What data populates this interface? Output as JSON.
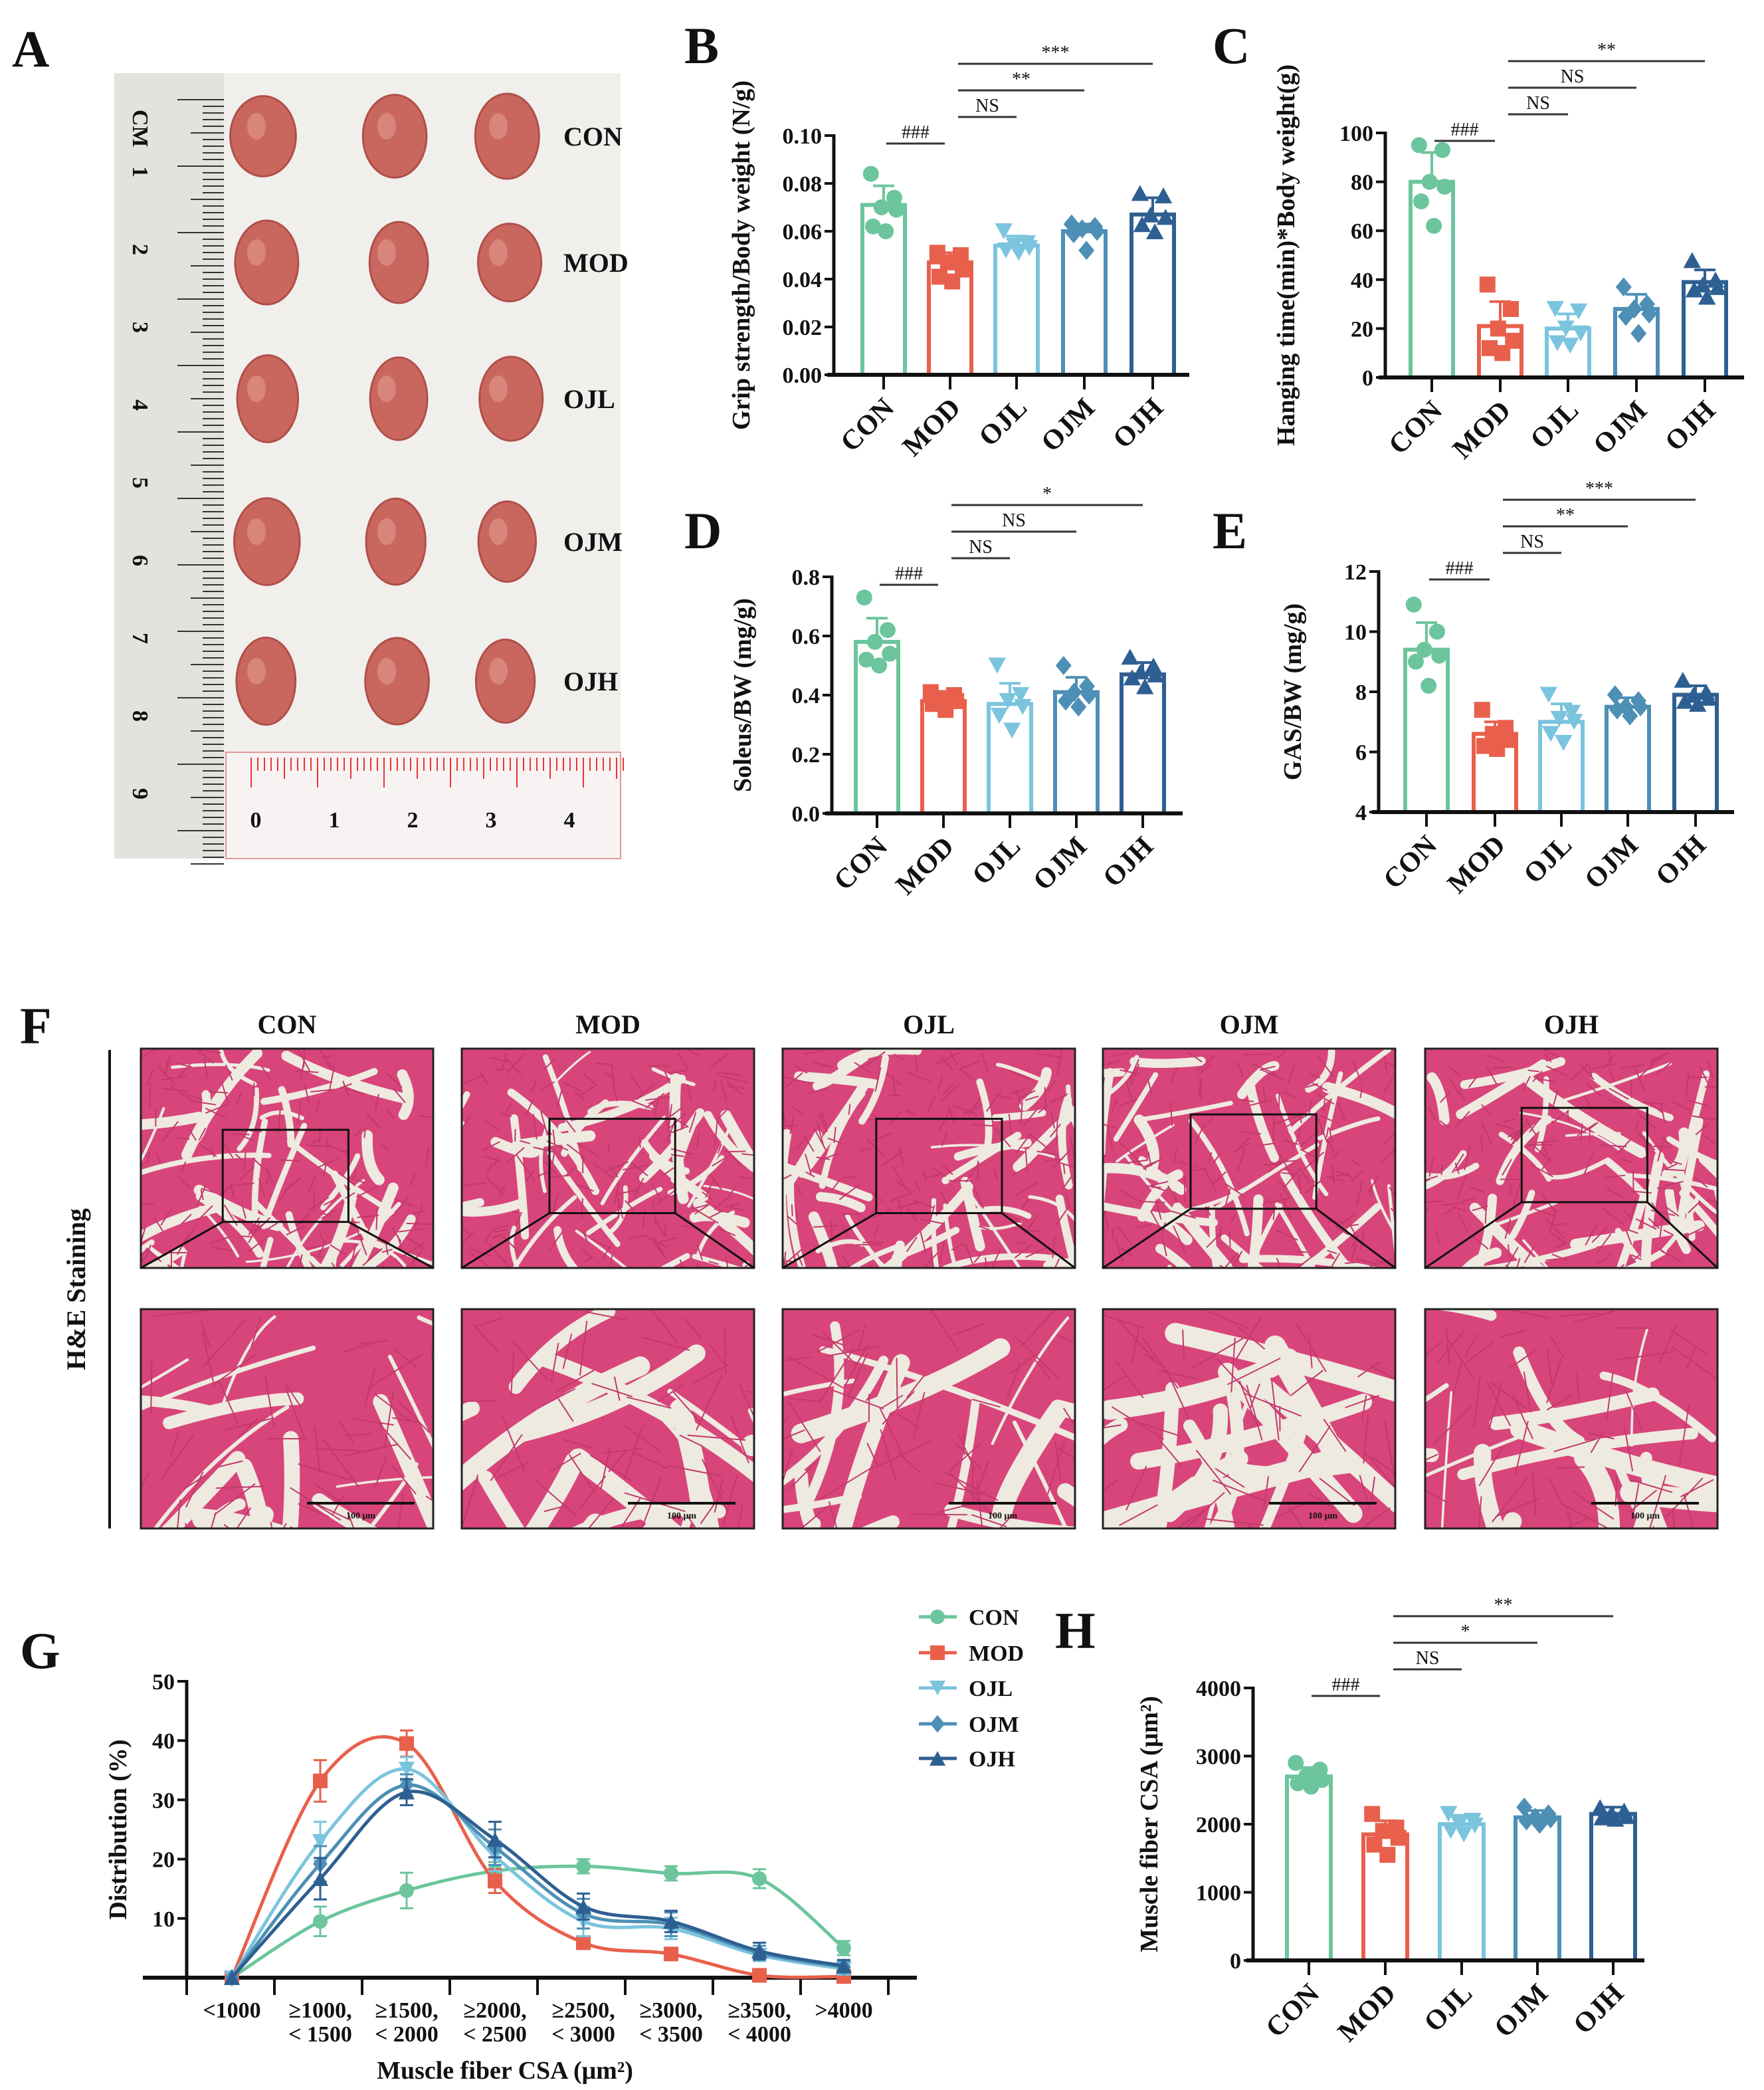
{
  "panel_letters": [
    "A",
    "B",
    "C",
    "D",
    "E",
    "F",
    "G",
    "H"
  ],
  "colors": {
    "CON": "#6cc59c",
    "MOD": "#e8604c",
    "OJL": "#7bc4de",
    "OJM": "#4d8fb5",
    "OJH": "#2e5f92"
  },
  "markers": {
    "CON": "circle",
    "MOD": "square",
    "OJL": "triangle-down",
    "OJM": "diamond",
    "OJH": "triangle-up"
  },
  "panel_a": {
    "groups": [
      "CON",
      "MOD",
      "OJL",
      "OJM",
      "OJH"
    ],
    "ruler_unit": "CM",
    "ruler_numbers": [
      "1",
      "2",
      "3",
      "4",
      "5",
      "6",
      "7",
      "8",
      "9"
    ],
    "bottom_ruler_numbers": [
      "0",
      "1",
      "2",
      "3",
      "4"
    ]
  },
  "panel_f": {
    "groups": [
      "CON",
      "MOD",
      "OJL",
      "OJM",
      "OJH"
    ],
    "row_label": "H&E Staining",
    "scale_bar": "100 μm"
  },
  "chart_data": [
    {
      "panel": "B",
      "type": "bar",
      "categories": [
        "CON",
        "MOD",
        "OJL",
        "OJM",
        "OJH"
      ],
      "ylabel": "Grip strength/Body weight (N/g)",
      "ylim": [
        0,
        0.1
      ],
      "yticks": [
        "0.00",
        "0.02",
        "0.04",
        "0.06",
        "0.08",
        "0.10"
      ],
      "means": [
        0.071,
        0.047,
        0.054,
        0.06,
        0.067
      ],
      "sd": [
        0.008,
        0.004,
        0.004,
        0.003,
        0.007
      ],
      "points": [
        [
          0.084,
          0.074,
          0.07,
          0.069,
          0.062,
          0.06
        ],
        [
          0.051,
          0.05,
          0.047,
          0.044,
          0.041,
          0.039
        ],
        [
          0.06,
          0.055,
          0.054,
          0.053,
          0.052,
          0.051
        ],
        [
          0.063,
          0.062,
          0.061,
          0.06,
          0.059,
          0.052
        ],
        [
          0.076,
          0.075,
          0.067,
          0.066,
          0.063,
          0.06
        ]
      ],
      "significance": [
        {
          "from": 0,
          "to": 1,
          "label": "###"
        },
        {
          "from": 1,
          "to": 2,
          "label": "NS"
        },
        {
          "from": 1,
          "to": 3,
          "label": "**"
        },
        {
          "from": 1,
          "to": 4,
          "label": "***"
        }
      ]
    },
    {
      "panel": "C",
      "type": "bar",
      "categories": [
        "CON",
        "MOD",
        "OJL",
        "OJM",
        "OJH"
      ],
      "ylabel": "Hanging time(min)*Body weight(g)",
      "ylim": [
        0,
        100
      ],
      "yticks": [
        "0",
        "20",
        "40",
        "60",
        "80",
        "100"
      ],
      "means": [
        80,
        21,
        20,
        28,
        39
      ],
      "sd": [
        12,
        10,
        6,
        6,
        5
      ],
      "points": [
        [
          95,
          93,
          80,
          78,
          72,
          62
        ],
        [
          38,
          28,
          20,
          15,
          12,
          10
        ],
        [
          28,
          27,
          20,
          18,
          14,
          13
        ],
        [
          37,
          30,
          28,
          26,
          25,
          18
        ],
        [
          48,
          40,
          38,
          37,
          36,
          33
        ]
      ],
      "significance": [
        {
          "from": 0,
          "to": 1,
          "label": "###"
        },
        {
          "from": 1,
          "to": 2,
          "label": "NS"
        },
        {
          "from": 1,
          "to": 3,
          "label": "NS"
        },
        {
          "from": 1,
          "to": 4,
          "label": "**"
        }
      ]
    },
    {
      "panel": "D",
      "type": "bar",
      "categories": [
        "CON",
        "MOD",
        "OJL",
        "OJM",
        "OJH"
      ],
      "ylabel": "Soleus/BW (mg/g)",
      "ylim": [
        0,
        0.8
      ],
      "yticks": [
        "0.0",
        "0.2",
        "0.4",
        "0.6",
        "0.8"
      ],
      "means": [
        0.58,
        0.38,
        0.37,
        0.41,
        0.47
      ],
      "sd": [
        0.08,
        0.02,
        0.07,
        0.05,
        0.04
      ],
      "points": [
        [
          0.73,
          0.62,
          0.58,
          0.54,
          0.52,
          0.5
        ],
        [
          0.41,
          0.4,
          0.39,
          0.38,
          0.37,
          0.35
        ],
        [
          0.5,
          0.4,
          0.38,
          0.36,
          0.33,
          0.28
        ],
        [
          0.5,
          0.43,
          0.41,
          0.4,
          0.38,
          0.36
        ],
        [
          0.53,
          0.5,
          0.48,
          0.47,
          0.46,
          0.43
        ]
      ],
      "significance": [
        {
          "from": 0,
          "to": 1,
          "label": "###"
        },
        {
          "from": 1,
          "to": 2,
          "label": "NS"
        },
        {
          "from": 1,
          "to": 3,
          "label": "NS"
        },
        {
          "from": 1,
          "to": 4,
          "label": "*"
        }
      ]
    },
    {
      "panel": "E",
      "type": "bar",
      "categories": [
        "CON",
        "MOD",
        "OJL",
        "OJM",
        "OJH"
      ],
      "ylabel": "GAS/BW (mg/g)",
      "ylim": [
        4,
        12
      ],
      "yticks": [
        "4",
        "6",
        "8",
        "10",
        "12"
      ],
      "means": [
        9.4,
        6.6,
        7.0,
        7.5,
        7.9
      ],
      "sd": [
        0.9,
        0.4,
        0.6,
        0.3,
        0.3
      ],
      "points": [
        [
          10.9,
          10.0,
          9.4,
          9.2,
          9.0,
          8.2
        ],
        [
          7.4,
          6.8,
          6.6,
          6.4,
          6.2,
          6.1
        ],
        [
          7.9,
          7.3,
          7.1,
          7.0,
          6.6,
          6.3
        ],
        [
          7.9,
          7.7,
          7.5,
          7.5,
          7.4,
          7.2
        ],
        [
          8.4,
          8.0,
          7.9,
          7.8,
          7.7,
          7.6
        ]
      ],
      "significance": [
        {
          "from": 0,
          "to": 1,
          "label": "###"
        },
        {
          "from": 1,
          "to": 2,
          "label": "NS"
        },
        {
          "from": 1,
          "to": 3,
          "label": "**"
        },
        {
          "from": 1,
          "to": 4,
          "label": "***"
        }
      ]
    },
    {
      "panel": "G",
      "type": "line",
      "categories": [
        "<1000",
        "≥1000,|< 1500",
        "≥1500,|< 2000",
        "≥2000,|< 2500",
        "≥2500,|< 3000",
        "≥3000,|< 3500",
        "≥3500,|< 4000",
        ">4000"
      ],
      "ylabel": "Distribution (%)",
      "xlabel": "Muscle fiber CSA (μm²)",
      "ylim": [
        0,
        50
      ],
      "yticks": [
        "10",
        "20",
        "30",
        "40",
        "50"
      ],
      "legend": "top-right",
      "series": [
        {
          "name": "CON",
          "values": [
            0,
            9.5,
            14.7,
            18.0,
            18.8,
            17.6,
            16.7,
            5.0
          ],
          "err": [
            0,
            2.5,
            3,
            1.5,
            1.2,
            1.2,
            1.6,
            1.2
          ]
        },
        {
          "name": "MOD",
          "values": [
            0,
            33.2,
            39.5,
            16.3,
            5.9,
            4.0,
            0.4,
            0.2
          ],
          "err": [
            0,
            3.5,
            2.2,
            2,
            1,
            1,
            0.5,
            0.3
          ]
        },
        {
          "name": "OJL",
          "values": [
            0,
            23.0,
            35.2,
            20.5,
            9.5,
            8.3,
            3.8,
            1.5
          ],
          "err": [
            0,
            3.3,
            2,
            2.5,
            2.5,
            1.8,
            1,
            1
          ]
        },
        {
          "name": "OJM",
          "values": [
            0,
            19.2,
            32.5,
            22.0,
            10.8,
            9.0,
            4.2,
            1.8
          ],
          "err": [
            0,
            3,
            1.8,
            3,
            2.5,
            2,
            1.2,
            1
          ]
        },
        {
          "name": "OJH",
          "values": [
            0,
            16.7,
            31.3,
            23.3,
            12.0,
            9.5,
            4.5,
            2.0
          ],
          "err": [
            0,
            3.5,
            2.2,
            3,
            2.2,
            1.8,
            1.4,
            1
          ]
        }
      ]
    },
    {
      "panel": "H",
      "type": "bar",
      "categories": [
        "CON",
        "MOD",
        "OJL",
        "OJM",
        "OJH"
      ],
      "ylabel": "Muscle fiber CSA (μm²)",
      "ylim": [
        0,
        4000
      ],
      "yticks": [
        "0",
        "1000",
        "2000",
        "3000",
        "4000"
      ],
      "means": [
        2700,
        1850,
        2000,
        2100,
        2150
      ],
      "sd": [
        130,
        200,
        130,
        100,
        100
      ],
      "points": [
        [
          2900,
          2800,
          2720,
          2650,
          2600,
          2550
        ],
        [
          2150,
          1950,
          1900,
          1800,
          1700,
          1550
        ],
        [
          2150,
          2050,
          2000,
          1980,
          1900,
          1850
        ],
        [
          2250,
          2150,
          2100,
          2080,
          2050,
          2000
        ],
        [
          2250,
          2200,
          2150,
          2120,
          2100,
          2080
        ]
      ],
      "significance": [
        {
          "from": 0,
          "to": 1,
          "label": "###"
        },
        {
          "from": 1,
          "to": 2,
          "label": "NS"
        },
        {
          "from": 1,
          "to": 3,
          "label": "*"
        },
        {
          "from": 1,
          "to": 4,
          "label": "**"
        }
      ]
    }
  ]
}
